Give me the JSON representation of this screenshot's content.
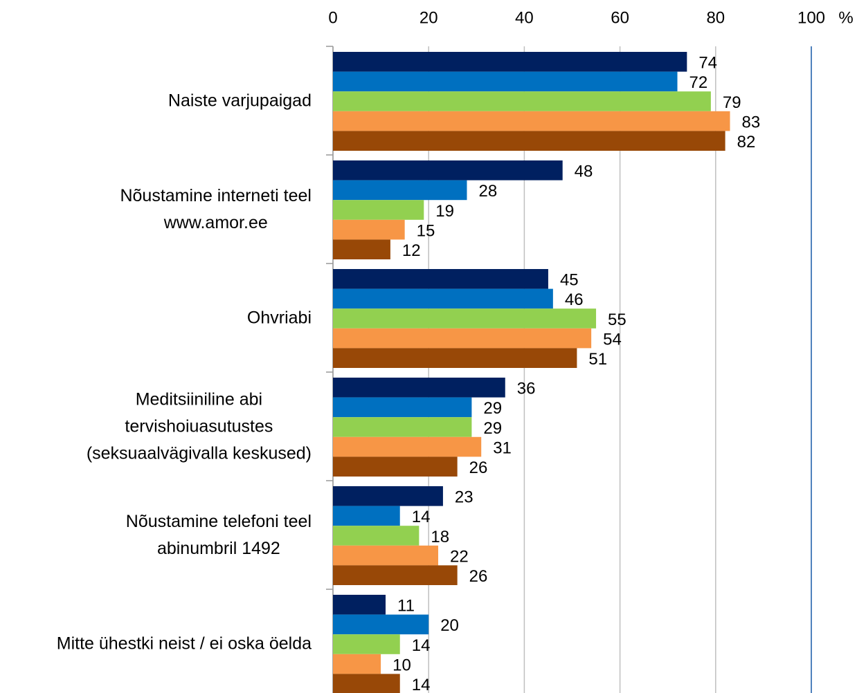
{
  "chart_data": {
    "type": "hbar",
    "categories": [
      "Naiste varjupaigad",
      "Nõustamine interneti teel\nwww.amor.ee",
      "Ohvriabi",
      "Meditsiiniline abi\ntervishoiuasutustes\n(seksuaalvägivalla keskused)",
      "Nõustamine telefoni teel\nabinumbril 1492",
      "Mitte ühestki neist / ei oska öelda"
    ],
    "series": [
      {
        "color": "#002060",
        "values": [
          74,
          48,
          45,
          36,
          23,
          11
        ]
      },
      {
        "color": "#0070c0",
        "values": [
          72,
          28,
          46,
          29,
          14,
          20
        ]
      },
      {
        "color": "#92d050",
        "values": [
          79,
          19,
          55,
          29,
          18,
          14
        ]
      },
      {
        "color": "#f79646",
        "values": [
          83,
          15,
          54,
          31,
          22,
          10
        ]
      },
      {
        "color": "#984807",
        "values": [
          82,
          12,
          51,
          26,
          26,
          14
        ]
      }
    ],
    "xlabel": "%",
    "xlim": [
      0,
      100
    ],
    "xticks": [
      0,
      20,
      40,
      60,
      80,
      100
    ],
    "grid": true
  }
}
